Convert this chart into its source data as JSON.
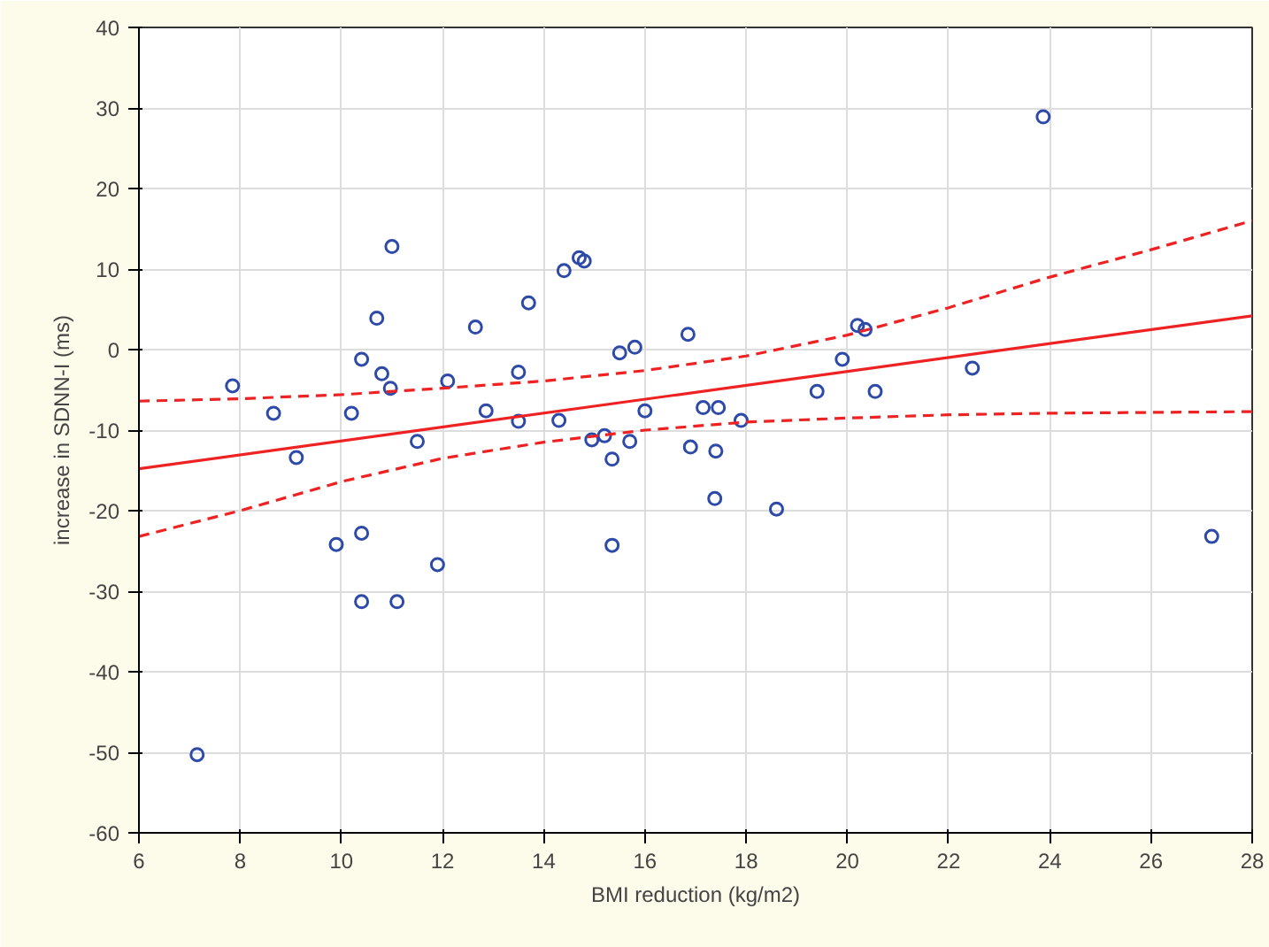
{
  "chart_data": {
    "type": "scatter",
    "xlabel": "BMI reduction (kg/m2)",
    "ylabel": "increase in SDNN-I (ms)",
    "xlim": [
      6,
      28
    ],
    "xticks": [
      6,
      8,
      10,
      12,
      14,
      16,
      18,
      20,
      22,
      24,
      26,
      28
    ],
    "ylim": [
      -60,
      40
    ],
    "yticks": [
      -60,
      -50,
      -40,
      -30,
      -20,
      -10,
      0,
      10,
      20,
      30,
      40
    ],
    "grid": true,
    "series": [
      {
        "color": "#2e4aa8",
        "marker": "circle",
        "x": [
          7.15,
          7.85,
          8.66,
          9.11,
          9.9,
          10.2,
          10.4,
          10.4,
          10.4,
          10.7,
          10.8,
          10.97,
          11.0,
          11.1,
          11.5,
          11.9,
          12.1,
          12.65,
          12.86,
          13.5,
          13.5,
          13.7,
          14.3,
          14.4,
          14.7,
          14.8,
          14.95,
          15.2,
          15.35,
          15.35,
          15.5,
          15.7,
          15.8,
          16.0,
          16.85,
          16.9,
          17.15,
          17.45,
          17.38,
          17.4,
          17.9,
          18.6,
          19.4,
          19.9,
          20.2,
          20.35,
          20.55,
          22.47,
          23.87,
          27.2
        ],
        "values": [
          -50.3,
          -4.5,
          -7.9,
          -13.4,
          -24.2,
          -7.9,
          -22.8,
          -31.3,
          -1.2,
          3.9,
          -3.0,
          -4.8,
          12.8,
          -31.3,
          -11.4,
          -26.7,
          -3.9,
          2.8,
          -7.6,
          -8.9,
          -2.8,
          5.8,
          -8.8,
          9.8,
          11.4,
          11.0,
          -11.2,
          -10.7,
          -13.6,
          -24.3,
          -0.4,
          -11.4,
          0.3,
          -7.6,
          1.9,
          -12.1,
          -7.2,
          -7.2,
          -18.5,
          -12.6,
          -8.8,
          -19.8,
          -5.2,
          -1.2,
          3.0,
          2.5,
          -5.2,
          -2.3,
          28.9,
          -23.2
        ]
      },
      {
        "type": "line",
        "color": "#ee2222",
        "line_style": "solid",
        "x": [
          6,
          28
        ],
        "values": [
          -14.8,
          4.2
        ]
      },
      {
        "type": "line",
        "color": "#ee2222",
        "line_style": "dashed",
        "x": [
          6,
          8,
          10,
          12,
          14,
          16,
          18,
          20,
          22,
          24,
          26,
          28
        ],
        "values": [
          -6.4,
          -6.1,
          -5.6,
          -4.8,
          -3.9,
          -2.6,
          -0.8,
          1.8,
          5.2,
          9.0,
          12.4,
          16.0
        ]
      },
      {
        "type": "line",
        "color": "#ee2222",
        "line_style": "dashed",
        "x": [
          6,
          8,
          10,
          12,
          14,
          16,
          18,
          20,
          22,
          24,
          26,
          28
        ],
        "values": [
          -23.2,
          -20.0,
          -16.4,
          -13.5,
          -11.5,
          -10.0,
          -9.0,
          -8.5,
          -8.1,
          -7.9,
          -7.8,
          -7.7
        ]
      }
    ]
  }
}
